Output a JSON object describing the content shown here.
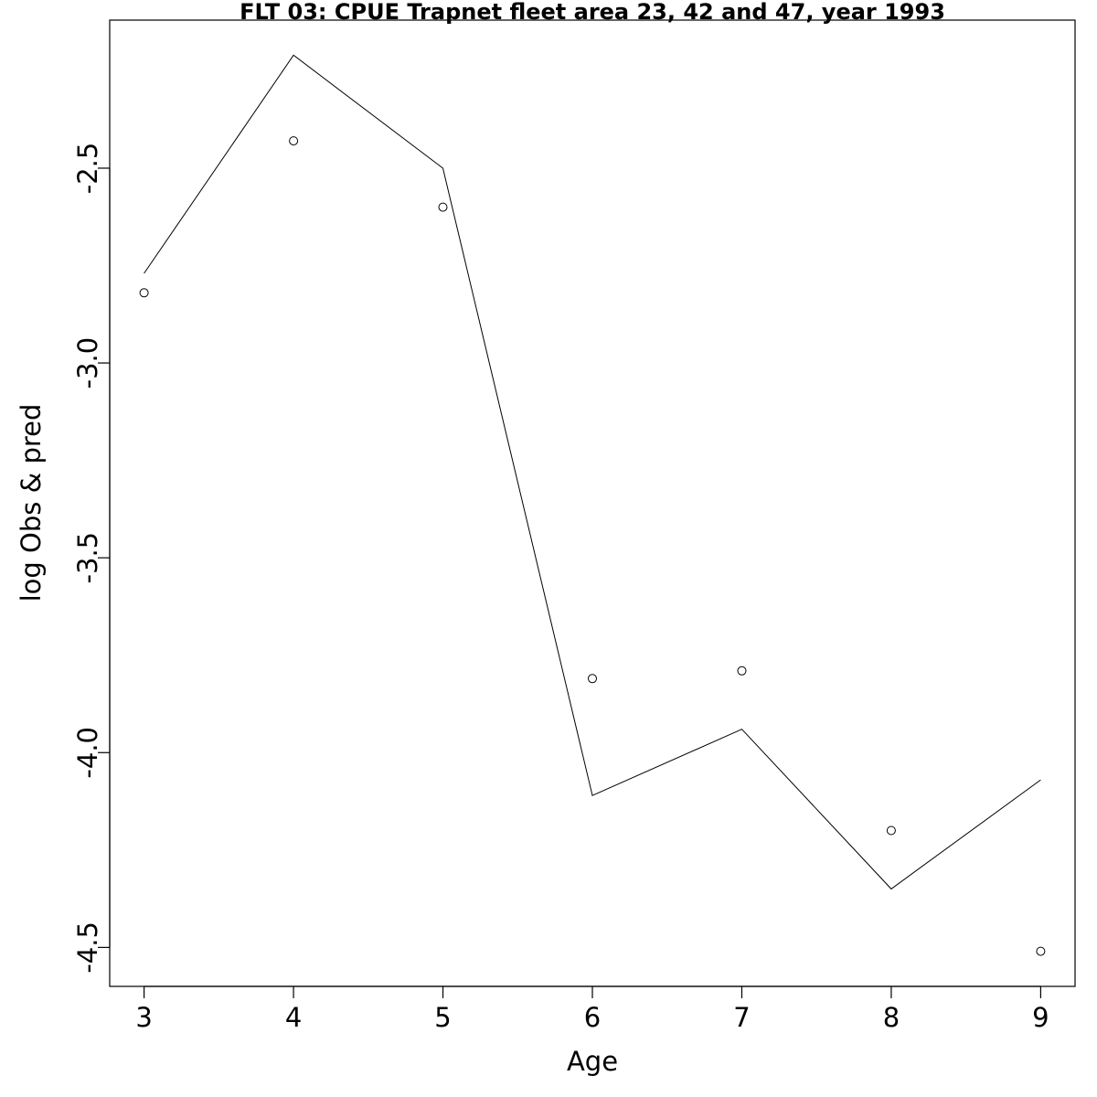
{
  "chart_data": {
    "type": "line",
    "title": "FLT 03: CPUE Trapnet fleet area 23, 42 and 47, year 1993",
    "xlabel": "Age",
    "ylabel": "log Obs & pred",
    "xlim": [
      2.77,
      9.23
    ],
    "ylim": [
      -4.6,
      -2.12
    ],
    "x_ticks": [
      3,
      4,
      5,
      6,
      7,
      8,
      9
    ],
    "y_ticks": [
      -4.5,
      -4.0,
      -3.5,
      -3.0,
      -2.5
    ],
    "y_tick_labels": [
      "-4.5",
      "-4.0",
      "-3.5",
      "-3.0",
      "-2.5"
    ],
    "grid": false,
    "x": [
      3,
      4,
      5,
      6,
      7,
      8,
      9
    ],
    "series": [
      {
        "style": "line",
        "values": [
          -2.77,
          -2.21,
          -2.5,
          -4.11,
          -3.94,
          -4.35,
          -4.07
        ]
      },
      {
        "style": "points",
        "values": [
          -2.82,
          -2.43,
          -2.6,
          -3.81,
          -3.79,
          -4.2,
          -4.51
        ]
      }
    ]
  }
}
